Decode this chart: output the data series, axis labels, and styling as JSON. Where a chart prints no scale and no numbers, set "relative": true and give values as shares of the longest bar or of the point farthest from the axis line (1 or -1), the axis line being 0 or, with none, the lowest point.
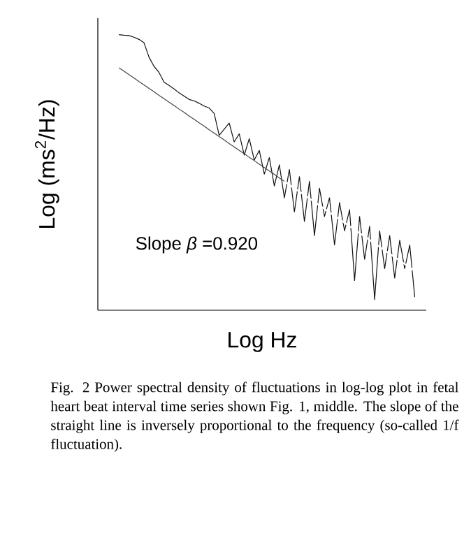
{
  "chart_data": {
    "type": "line",
    "relative": true,
    "xlabel": "Log Hz",
    "ylabel": "Log (ms$^{2}$/Hz)",
    "categories": [
      null,
      null,
      null,
      null,
      null,
      null,
      null,
      null,
      null,
      null,
      null,
      null,
      null,
      null,
      null,
      null,
      null,
      null,
      null,
      null,
      null,
      null,
      null,
      null,
      null,
      null,
      null,
      null,
      null,
      null,
      null,
      null,
      null,
      null,
      null,
      null,
      null,
      null,
      null,
      null,
      null,
      null,
      null,
      null,
      null,
      null,
      null,
      null,
      null,
      null,
      null,
      null,
      null,
      null,
      null,
      null,
      null,
      null,
      null,
      null
    ],
    "series": [
      {
        "color": "#111111",
        "values": [
          1.0,
          0.998,
          0.997,
          0.991,
          0.983,
          0.971,
          0.919,
          0.885,
          0.863,
          0.828,
          0.816,
          0.803,
          0.789,
          0.777,
          0.765,
          0.76,
          0.751,
          0.741,
          0.734,
          0.714,
          0.635,
          0.657,
          0.679,
          0.611,
          0.64,
          0.563,
          0.623,
          0.545,
          0.58,
          0.494,
          0.554,
          0.451,
          0.528,
          0.408,
          0.511,
          0.357,
          0.485,
          0.322,
          0.468,
          0.271,
          0.443,
          0.34,
          0.408,
          0.237,
          0.391,
          0.288,
          0.365,
          0.108,
          0.34,
          0.185,
          0.305,
          0.039,
          0.288,
          0.151,
          0.271,
          0.117,
          0.254,
          0.151,
          0.237,
          0.048
        ]
      },
      {
        "type": "line",
        "color": "#444444",
        "values": [
          0.88,
          0.868,
          0.855,
          0.843,
          0.83,
          0.818,
          0.805,
          0.793,
          0.78,
          0.768,
          0.755,
          0.743,
          0.73,
          0.718,
          0.705,
          0.693,
          0.68,
          0.668,
          0.655,
          0.643,
          0.63,
          0.618,
          0.605,
          0.593,
          0.58,
          0.568,
          0.555,
          0.543,
          0.53,
          0.518,
          0.505,
          0.493,
          0.48,
          0.468,
          null,
          null,
          null,
          null,
          null,
          null,
          null,
          null,
          null,
          null,
          null,
          null,
          null,
          null,
          null,
          null,
          null,
          null,
          null,
          null,
          null,
          null,
          null,
          null,
          null,
          null
        ]
      },
      {
        "type": "line",
        "color": "#ffffff",
        "values": [
          null,
          null,
          null,
          null,
          null,
          null,
          null,
          null,
          null,
          null,
          null,
          null,
          null,
          null,
          null,
          null,
          null,
          null,
          null,
          null,
          null,
          null,
          null,
          null,
          null,
          null,
          null,
          null,
          null,
          null,
          null,
          null,
          null,
          0.468,
          0.455,
          0.443,
          0.43,
          0.418,
          0.405,
          0.393,
          0.38,
          0.368,
          0.355,
          0.343,
          0.33,
          0.318,
          0.305,
          0.293,
          0.28,
          0.268,
          0.255,
          0.243,
          0.23,
          0.218,
          0.205,
          0.193,
          0.18,
          0.168,
          0.155,
          0.143
        ]
      }
    ],
    "annotations": [
      "Slope *β* =0.920",
      "Fig. 2  Power spectral density of fluctuations in log-log plot in fetal heart beat interval time series shown Fig. 1, middle. The slope of the straight line is inversely proportional to the frequency (so-called 1/f fluctuation)."
    ]
  }
}
